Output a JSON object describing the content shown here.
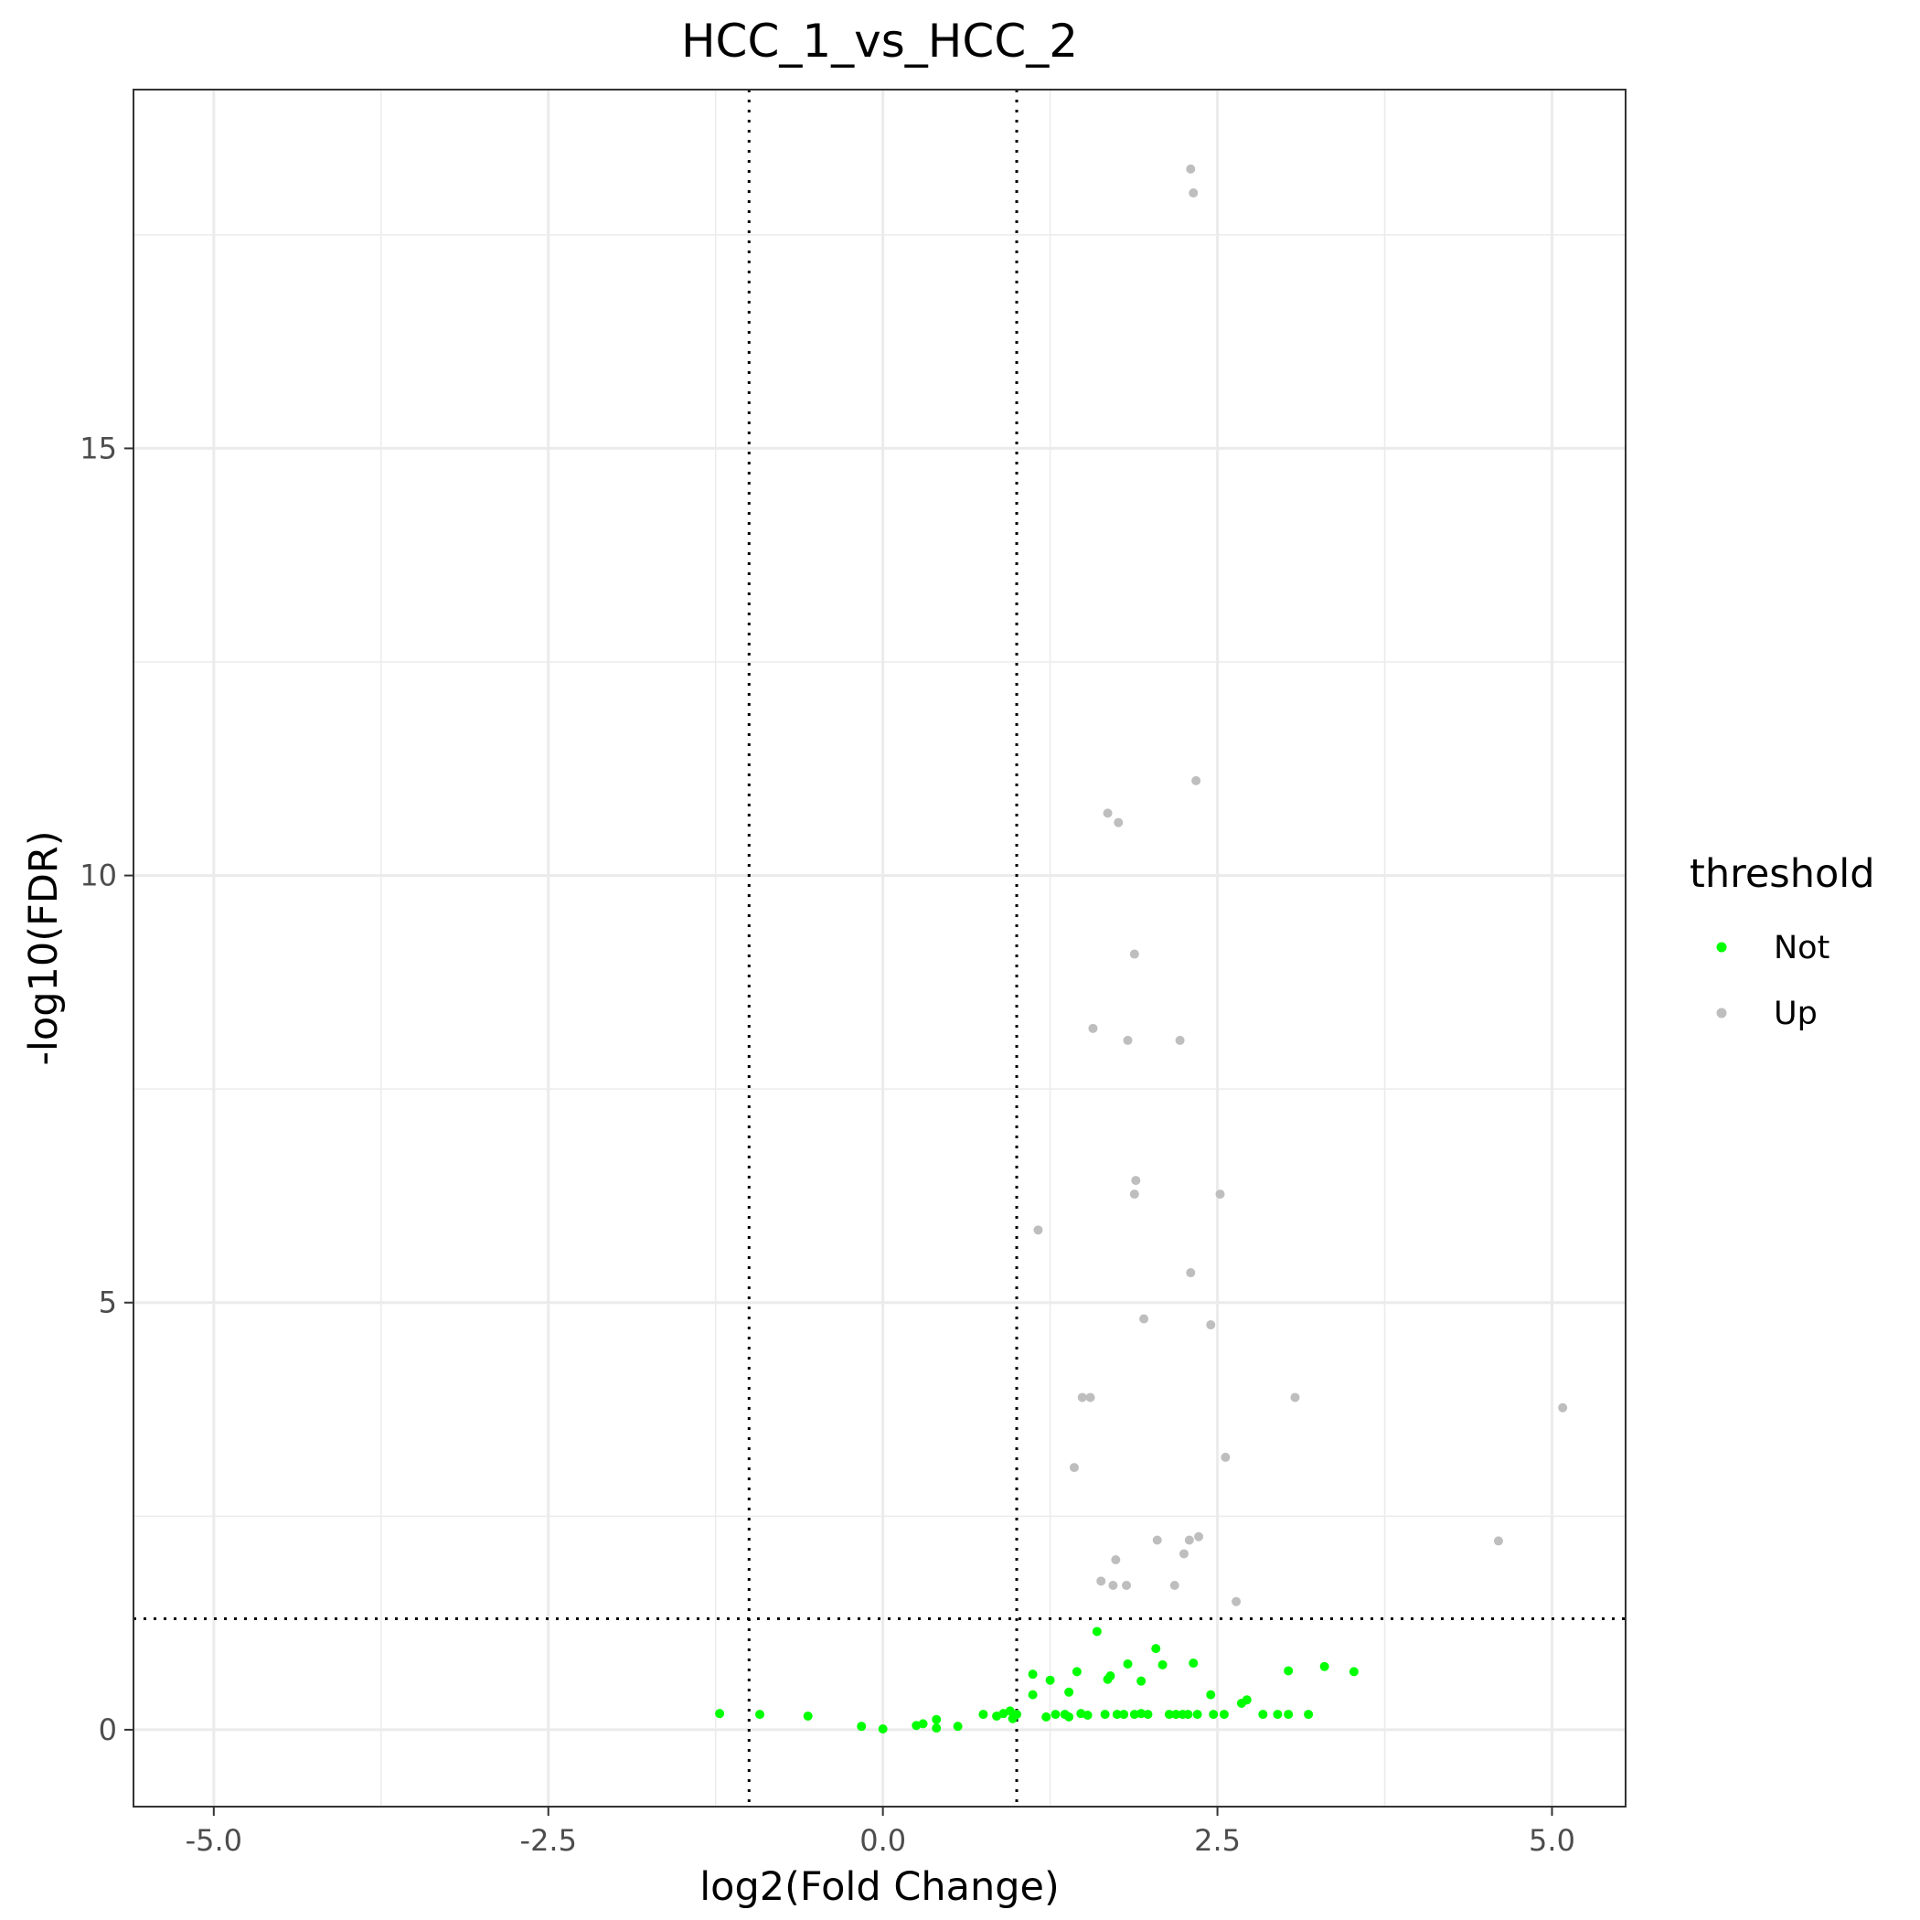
{
  "chart_data": {
    "type": "scatter",
    "title": "HCC_1_vs_HCC_2",
    "xlabel": "log2(Fold Change)",
    "ylabel": "-log10(FDR)",
    "xlim": [
      -5.6,
      5.55
    ],
    "ylim": [
      -0.9,
      19.2
    ],
    "x_ticks": [
      -5.0,
      -2.5,
      0.0,
      2.5,
      5.0
    ],
    "x_tick_labels": [
      "-5.0",
      "-2.5",
      "0.0",
      "2.5",
      "5.0"
    ],
    "y_ticks": [
      0,
      5,
      10,
      15
    ],
    "y_tick_labels": [
      "0",
      "5",
      "10",
      "15"
    ],
    "grid": true,
    "thresholds": {
      "x": [
        -1,
        1
      ],
      "y": 1.3
    },
    "legend": {
      "title": "threshold",
      "position": "right",
      "entries": [
        {
          "label": "Not",
          "color": "#00ff00"
        },
        {
          "label": "Up",
          "color": "#bebebe"
        }
      ]
    },
    "series": [
      {
        "name": "Not",
        "color": "#00ff00",
        "points": [
          [
            -1.22,
            0.19
          ],
          [
            -0.92,
            0.18
          ],
          [
            -0.56,
            0.16
          ],
          [
            -0.16,
            0.04
          ],
          [
            0.0,
            0.01
          ],
          [
            0.25,
            0.05
          ],
          [
            0.3,
            0.07
          ],
          [
            0.4,
            0.12
          ],
          [
            0.4,
            0.02
          ],
          [
            0.56,
            0.04
          ],
          [
            0.75,
            0.18
          ],
          [
            0.85,
            0.16
          ],
          [
            0.9,
            0.19
          ],
          [
            0.95,
            0.22
          ],
          [
            0.97,
            0.13
          ],
          [
            1.0,
            0.18
          ],
          [
            1.12,
            0.65
          ],
          [
            1.12,
            0.41
          ],
          [
            1.22,
            0.15
          ],
          [
            1.25,
            0.58
          ],
          [
            1.29,
            0.18
          ],
          [
            1.36,
            0.18
          ],
          [
            1.39,
            0.44
          ],
          [
            1.39,
            0.15
          ],
          [
            1.45,
            0.68
          ],
          [
            1.48,
            0.19
          ],
          [
            1.53,
            0.17
          ],
          [
            1.6,
            1.15
          ],
          [
            1.66,
            0.18
          ],
          [
            1.68,
            0.59
          ],
          [
            1.7,
            0.63
          ],
          [
            1.75,
            0.18
          ],
          [
            1.8,
            0.18
          ],
          [
            1.83,
            0.77
          ],
          [
            1.88,
            0.18
          ],
          [
            1.93,
            0.57
          ],
          [
            1.93,
            0.19
          ],
          [
            1.98,
            0.18
          ],
          [
            2.04,
            0.95
          ],
          [
            2.09,
            0.76
          ],
          [
            2.14,
            0.18
          ],
          [
            2.19,
            0.18
          ],
          [
            2.24,
            0.18
          ],
          [
            2.28,
            0.18
          ],
          [
            2.32,
            0.78
          ],
          [
            2.35,
            0.18
          ],
          [
            2.45,
            0.41
          ],
          [
            2.47,
            0.18
          ],
          [
            2.55,
            0.18
          ],
          [
            2.68,
            0.31
          ],
          [
            2.72,
            0.35
          ],
          [
            2.84,
            0.18
          ],
          [
            2.95,
            0.18
          ],
          [
            3.03,
            0.18
          ],
          [
            3.03,
            0.69
          ],
          [
            3.18,
            0.18
          ],
          [
            3.3,
            0.74
          ],
          [
            3.52,
            0.68
          ]
        ]
      },
      {
        "name": "Up",
        "color": "#bebebe",
        "points": [
          [
            2.3,
            18.27
          ],
          [
            2.32,
            17.99
          ],
          [
            2.34,
            11.11
          ],
          [
            1.68,
            10.73
          ],
          [
            1.76,
            10.62
          ],
          [
            1.88,
            9.08
          ],
          [
            1.57,
            8.21
          ],
          [
            1.83,
            8.07
          ],
          [
            2.22,
            8.07
          ],
          [
            1.89,
            6.43
          ],
          [
            1.88,
            6.27
          ],
          [
            2.52,
            6.27
          ],
          [
            1.16,
            5.85
          ],
          [
            2.3,
            5.35
          ],
          [
            1.95,
            4.81
          ],
          [
            2.45,
            4.74
          ],
          [
            1.49,
            3.89
          ],
          [
            1.55,
            3.89
          ],
          [
            3.08,
            3.89
          ],
          [
            5.08,
            3.77
          ],
          [
            2.56,
            3.19
          ],
          [
            1.43,
            3.07
          ],
          [
            2.05,
            2.22
          ],
          [
            2.29,
            2.22
          ],
          [
            2.36,
            2.26
          ],
          [
            4.6,
            2.21
          ],
          [
            2.25,
            2.06
          ],
          [
            1.74,
            1.99
          ],
          [
            1.63,
            1.74
          ],
          [
            1.72,
            1.69
          ],
          [
            1.82,
            1.69
          ],
          [
            2.18,
            1.69
          ],
          [
            2.64,
            1.5
          ]
        ]
      }
    ]
  }
}
